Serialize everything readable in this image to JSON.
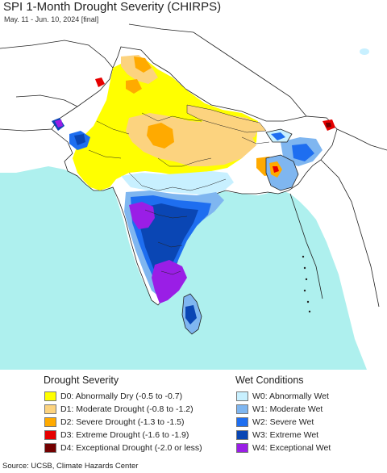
{
  "title": "SPI 1-Month Drought Severity (CHIRPS)",
  "subtitle": "May. 11 - Jun. 10, 2024 [final]",
  "map": {
    "colors": {
      "ocean": "#aef0ee",
      "outside_land": "#ffffff",
      "border": "#222222",
      "normal": "#ffffff",
      "D0": "#ffff00",
      "D1": "#fcd37f",
      "D2": "#ffaa00",
      "D3": "#e60000",
      "D4": "#730000",
      "W0": "#c8f0ff",
      "W1": "#7fb6f0",
      "W2": "#1e6ef0",
      "W3": "#0a46b4",
      "W4": "#9a1ee6"
    }
  },
  "legend": {
    "drought": {
      "heading": "Drought Severity",
      "items": [
        {
          "code": "D0",
          "label": "D0: Abnormally Dry (-0.5 to -0.7)",
          "color": "#ffff00"
        },
        {
          "code": "D1",
          "label": "D1: Moderate Drought (-0.8 to -1.2)",
          "color": "#fcd37f"
        },
        {
          "code": "D2",
          "label": "D2: Severe Drought (-1.3 to -1.5)",
          "color": "#ffaa00"
        },
        {
          "code": "D3",
          "label": "D3: Extreme Drought (-1.6 to -1.9)",
          "color": "#e60000"
        },
        {
          "code": "D4",
          "label": "D4: Exceptional Drought (-2.0 or less)",
          "color": "#730000"
        }
      ]
    },
    "wet": {
      "heading": "Wet Conditions",
      "items": [
        {
          "code": "W0",
          "label": "W0: Abnormally Wet",
          "color": "#c8f0ff"
        },
        {
          "code": "W1",
          "label": "W1: Moderate Wet",
          "color": "#7fb6f0"
        },
        {
          "code": "W2",
          "label": "W2: Severe Wet",
          "color": "#1e6ef0"
        },
        {
          "code": "W3",
          "label": "W3: Extreme Wet",
          "color": "#0a46b4"
        },
        {
          "code": "W4",
          "label": "W4: Exceptional Wet",
          "color": "#9a1ee6"
        }
      ]
    }
  },
  "source": "Source: UCSB, Climate Hazards Center"
}
